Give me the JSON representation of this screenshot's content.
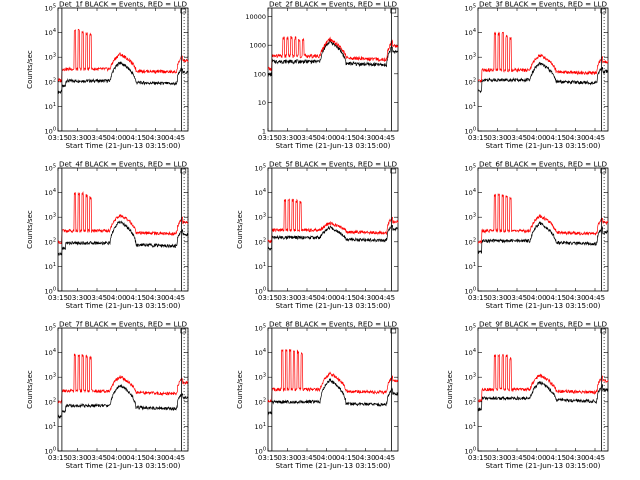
{
  "chart_data": [
    {
      "type": "line",
      "title": "Det_1f BLACK = Events, RED = LLD",
      "xlabel": "Start Time (21-Jun-13 03:15:00)",
      "ylabel": "Counts/sec",
      "scale": "log",
      "x_ticks": [
        "03:15",
        "03:30",
        "03:45",
        "04:00",
        "04:15",
        "04:30",
        "04:45"
      ],
      "y_ticks": [
        "10^0",
        "10^1",
        "10^2",
        "10^3",
        "10^4",
        "10^5"
      ],
      "y_range": [
        1,
        100000
      ],
      "x_range_minutes": [
        0,
        100
      ],
      "vlines_solid_minutes": [
        3,
        95
      ],
      "vlines_dotted_minutes": [
        97,
        100
      ],
      "series": [
        {
          "color": "#000000",
          "base": 110,
          "spikes": [
            {
              "t": 12,
              "peak": 0
            }
          ],
          "flare_peak": 650,
          "onset_bump": 60
        },
        {
          "color": "#ff0000",
          "base": 330,
          "spikes": [
            {
              "t": 13,
              "peak": 12000
            },
            {
              "t": 16,
              "peak": 12000
            },
            {
              "t": 19,
              "peak": 10000
            },
            {
              "t": 22,
              "peak": 9000
            },
            {
              "t": 25,
              "peak": 9000
            }
          ],
          "flare_peak": 1400,
          "onset_bump": 0
        }
      ]
    },
    {
      "type": "line",
      "title": "Det_2f BLACK = Events, RED = LLD",
      "xlabel": "Start Time (21-Jun-13 03:15:00)",
      "ylabel": "",
      "scale": "linear-labels",
      "x_ticks": [
        "03:15",
        "03:30",
        "03:45",
        "04:00",
        "04:15",
        "04:30",
        "04:45"
      ],
      "y_ticks": [
        "1",
        "10",
        "100",
        "1000",
        "10000"
      ],
      "y_range": [
        1,
        20000
      ],
      "x_range_minutes": [
        0,
        100
      ],
      "vlines_solid_minutes": [
        3,
        95
      ],
      "vlines_dotted_minutes": [],
      "series": [
        {
          "color": "#000000",
          "base": 270,
          "spikes": [],
          "flare_peak": 1450,
          "onset_bump": 0
        },
        {
          "color": "#ff0000",
          "base": 420,
          "spikes": [
            {
              "t": 12,
              "peak": 1800
            },
            {
              "t": 15,
              "peak": 1800
            },
            {
              "t": 18,
              "peak": 1800
            },
            {
              "t": 21,
              "peak": 1800
            },
            {
              "t": 24,
              "peak": 1600
            },
            {
              "t": 27,
              "peak": 1500
            }
          ],
          "flare_peak": 1700,
          "onset_bump": 0
        }
      ]
    },
    {
      "type": "line",
      "title": "Det_3f BLACK = Events, RED = LLD",
      "xlabel": "Start Time (21-Jun-13 03:15:00)",
      "ylabel": "",
      "scale": "log",
      "x_ticks": [
        "03:15",
        "03:30",
        "03:45",
        "04:00",
        "04:15",
        "04:30",
        "04:45"
      ],
      "y_ticks": [
        "10^0",
        "10^1",
        "10^2",
        "10^3",
        "10^4",
        "10^5"
      ],
      "y_range": [
        1,
        100000
      ],
      "x_range_minutes": [
        0,
        100
      ],
      "vlines_solid_minutes": [
        95
      ],
      "vlines_dotted_minutes": [
        97
      ],
      "series": [
        {
          "color": "#000000",
          "base": 120,
          "spikes": [],
          "flare_peak": 600,
          "onset_bump": 0
        },
        {
          "color": "#ff0000",
          "base": 300,
          "spikes": [
            {
              "t": 13,
              "peak": 9000
            },
            {
              "t": 16,
              "peak": 9000
            },
            {
              "t": 19,
              "peak": 9000
            },
            {
              "t": 22,
              "peak": 7000
            },
            {
              "t": 25,
              "peak": 6000
            }
          ],
          "flare_peak": 1300,
          "onset_bump": 0
        }
      ]
    },
    {
      "type": "line",
      "title": "Det_4f BLACK = Events, RED = LLD",
      "xlabel": "Start Time (21-Jun-13 03:15:00)",
      "ylabel": "Counts/sec",
      "scale": "log",
      "x_ticks": [
        "03:15",
        "03:30",
        "03:45",
        "04:00",
        "04:15",
        "04:30",
        "04:45"
      ],
      "y_ticks": [
        "10^0",
        "10^1",
        "10^2",
        "10^3",
        "10^4",
        "10^5"
      ],
      "y_range": [
        1,
        100000
      ],
      "x_range_minutes": [
        0,
        100
      ],
      "vlines_solid_minutes": [
        3,
        95
      ],
      "vlines_dotted_minutes": [
        97,
        100
      ],
      "series": [
        {
          "color": "#000000",
          "base": 90,
          "spikes": [],
          "flare_peak": 700,
          "onset_bump": 60
        },
        {
          "color": "#ff0000",
          "base": 280,
          "spikes": [
            {
              "t": 13,
              "peak": 9000
            },
            {
              "t": 16,
              "peak": 9000
            },
            {
              "t": 19,
              "peak": 9000
            },
            {
              "t": 22,
              "peak": 7500
            },
            {
              "t": 25,
              "peak": 6500
            }
          ],
          "flare_peak": 1300,
          "onset_bump": 0
        }
      ]
    },
    {
      "type": "line",
      "title": "Det_5f BLACK = Events, RED = LLD",
      "xlabel": "Start Time (21-Jun-13 03:15:00)",
      "ylabel": "Counts/sec",
      "scale": "log",
      "x_ticks": [
        "03:15",
        "03:30",
        "03:45",
        "04:00",
        "04:15",
        "04:30",
        "04:45"
      ],
      "y_ticks": [
        "10^0",
        "10^1",
        "10^2",
        "10^3",
        "10^4",
        "10^5"
      ],
      "y_range": [
        1,
        100000
      ],
      "x_range_minutes": [
        0,
        100
      ],
      "vlines_solid_minutes": [
        3,
        95
      ],
      "vlines_dotted_minutes": [],
      "series": [
        {
          "color": "#000000",
          "base": 150,
          "spikes": [],
          "flare_peak": 400,
          "onset_bump": 0
        },
        {
          "color": "#ff0000",
          "base": 300,
          "spikes": [
            {
              "t": 13,
              "peak": 5000
            },
            {
              "t": 16,
              "peak": 5000
            },
            {
              "t": 19,
              "peak": 5000
            },
            {
              "t": 22,
              "peak": 4500
            },
            {
              "t": 25,
              "peak": 4000
            }
          ],
          "flare_peak": 600,
          "onset_bump": 0
        }
      ]
    },
    {
      "type": "line",
      "title": "Det_6f BLACK = Events, RED = LLD",
      "xlabel": "Start Time (21-Jun-13 03:15:00)",
      "ylabel": "",
      "scale": "log",
      "x_ticks": [
        "03:15",
        "03:30",
        "03:45",
        "04:00",
        "04:15",
        "04:30",
        "04:45"
      ],
      "y_ticks": [
        "10^0",
        "10^1",
        "10^2",
        "10^3",
        "10^4",
        "10^5"
      ],
      "y_range": [
        1,
        100000
      ],
      "x_range_minutes": [
        0,
        100
      ],
      "vlines_solid_minutes": [
        95
      ],
      "vlines_dotted_minutes": [
        97
      ],
      "series": [
        {
          "color": "#000000",
          "base": 110,
          "spikes": [],
          "flare_peak": 600,
          "onset_bump": 0
        },
        {
          "color": "#ff0000",
          "base": 280,
          "spikes": [
            {
              "t": 13,
              "peak": 8000
            },
            {
              "t": 16,
              "peak": 8000
            },
            {
              "t": 19,
              "peak": 8000
            },
            {
              "t": 22,
              "peak": 7000
            },
            {
              "t": 25,
              "peak": 6000
            }
          ],
          "flare_peak": 1200,
          "onset_bump": 0
        }
      ]
    },
    {
      "type": "line",
      "title": "Det_7f BLACK = Events, RED = LLD",
      "xlabel": "Start Time (21-Jun-13 03:15:00)",
      "ylabel": "Counts/sec",
      "scale": "log",
      "x_ticks": [
        "03:15",
        "03:30",
        "03:45",
        "04:00",
        "04:15",
        "04:30",
        "04:45"
      ],
      "y_ticks": [
        "10^0",
        "10^1",
        "10^2",
        "10^3",
        "10^4",
        "10^5"
      ],
      "y_range": [
        1,
        100000
      ],
      "x_range_minutes": [
        0,
        100
      ],
      "vlines_solid_minutes": [
        3,
        95
      ],
      "vlines_dotted_minutes": [
        97,
        100
      ],
      "series": [
        {
          "color": "#000000",
          "base": 70,
          "spikes": [],
          "flare_peak": 500,
          "onset_bump": 50
        },
        {
          "color": "#ff0000",
          "base": 280,
          "spikes": [
            {
              "t": 13,
              "peak": 8000
            },
            {
              "t": 16,
              "peak": 8000
            },
            {
              "t": 19,
              "peak": 8000
            },
            {
              "t": 22,
              "peak": 7000
            },
            {
              "t": 25,
              "peak": 6000
            }
          ],
          "flare_peak": 1100,
          "onset_bump": 0
        }
      ]
    },
    {
      "type": "line",
      "title": "Det_8f BLACK = Events, RED = LLD",
      "xlabel": "Start Time (21-Jun-13 03:15:00)",
      "ylabel": "Counts/sec",
      "scale": "log",
      "x_ticks": [
        "03:15",
        "03:30",
        "03:45",
        "04:00",
        "04:15",
        "04:30",
        "04:45"
      ],
      "y_ticks": [
        "10^0",
        "10^1",
        "10^2",
        "10^3",
        "10^4",
        "10^5"
      ],
      "y_range": [
        1,
        100000
      ],
      "x_range_minutes": [
        0,
        100
      ],
      "vlines_solid_minutes": [
        3,
        95
      ],
      "vlines_dotted_minutes": [],
      "series": [
        {
          "color": "#000000",
          "base": 100,
          "spikes": [],
          "flare_peak": 800,
          "onset_bump": 0
        },
        {
          "color": "#ff0000",
          "base": 320,
          "spikes": [
            {
              "t": 11,
              "peak": 13000
            },
            {
              "t": 14,
              "peak": 13000
            },
            {
              "t": 17,
              "peak": 13000
            },
            {
              "t": 20,
              "peak": 12000
            },
            {
              "t": 23,
              "peak": 11000
            },
            {
              "t": 26,
              "peak": 9000
            }
          ],
          "flare_peak": 1500,
          "onset_bump": 0
        }
      ]
    },
    {
      "type": "line",
      "title": "Det_9f BLACK = Events, RED = LLD",
      "xlabel": "Start Time (21-Jun-13 03:15:00)",
      "ylabel": "Counts/sec",
      "scale": "log",
      "x_ticks": [
        "03:15",
        "03:30",
        "03:45",
        "04:00",
        "04:15",
        "04:30",
        "04:45"
      ],
      "y_ticks": [
        "10^0",
        "10^1",
        "10^2",
        "10^3",
        "10^4",
        "10^5"
      ],
      "y_range": [
        1,
        100000
      ],
      "x_range_minutes": [
        0,
        100
      ],
      "vlines_solid_minutes": [
        95
      ],
      "vlines_dotted_minutes": [
        97
      ],
      "series": [
        {
          "color": "#000000",
          "base": 140,
          "spikes": [],
          "flare_peak": 650,
          "onset_bump": 0
        },
        {
          "color": "#ff0000",
          "base": 320,
          "spikes": [
            {
              "t": 13,
              "peak": 7500
            },
            {
              "t": 16,
              "peak": 7500
            },
            {
              "t": 19,
              "peak": 7500
            },
            {
              "t": 22,
              "peak": 7000
            },
            {
              "t": 25,
              "peak": 6000
            }
          ],
          "flare_peak": 1300,
          "onset_bump": 0
        }
      ]
    }
  ]
}
